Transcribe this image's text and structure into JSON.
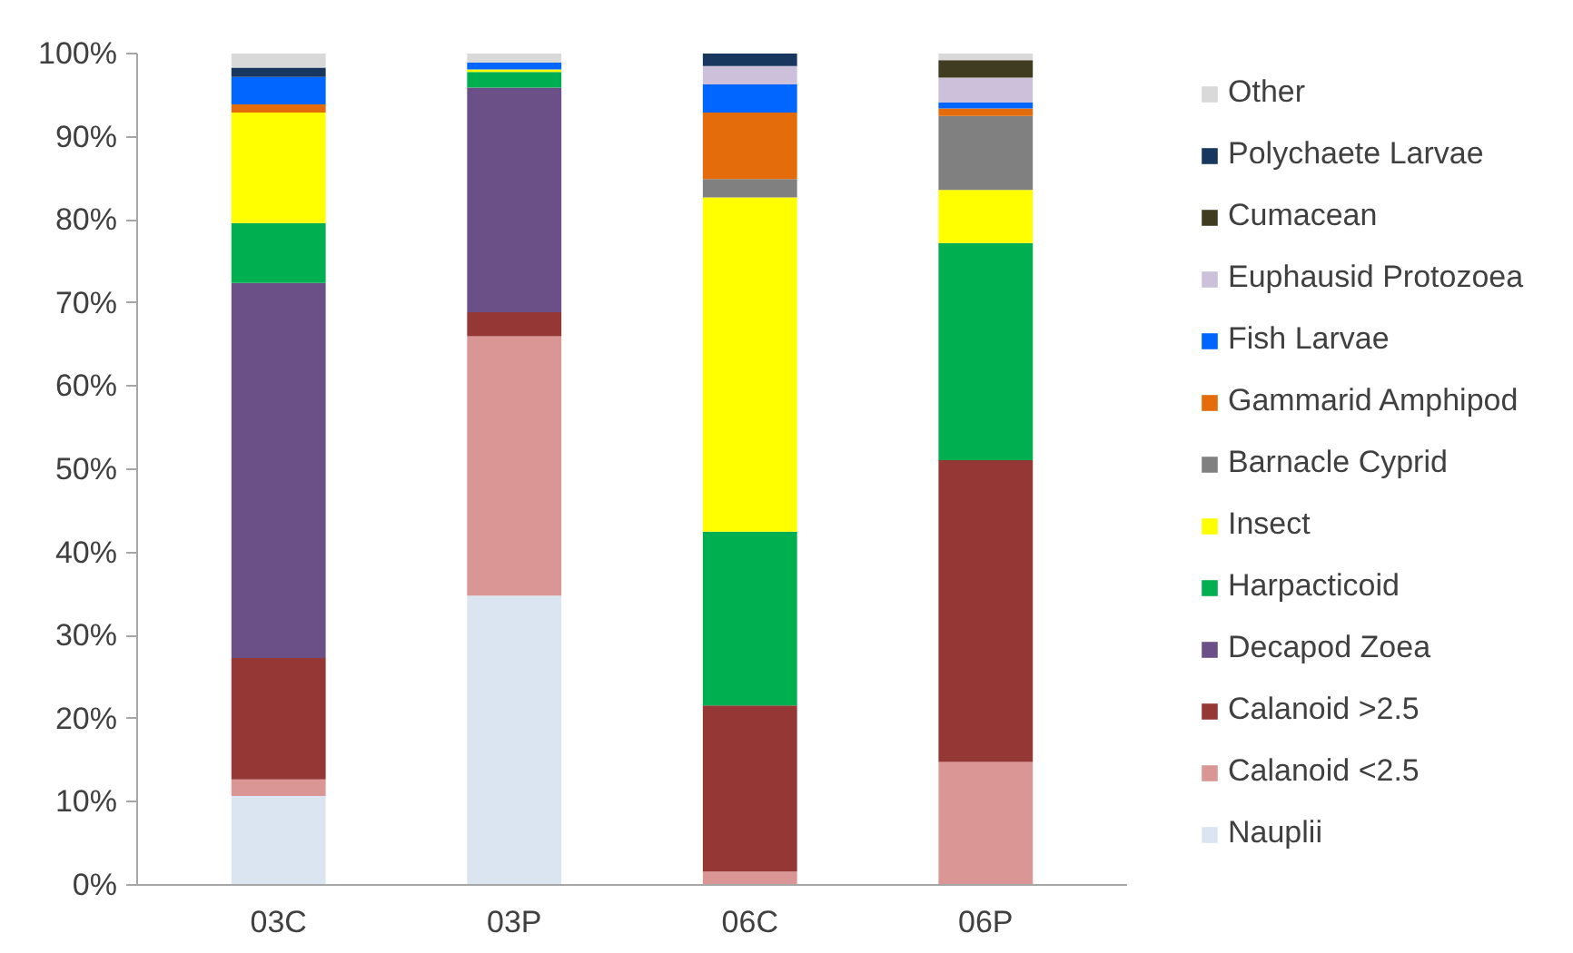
{
  "chart_data": {
    "type": "bar",
    "stacked": true,
    "categories": [
      "03C",
      "03P",
      "06C",
      "06P"
    ],
    "series": [
      {
        "name": "Nauplii",
        "color": "#dbe5f1",
        "values": [
          10.7,
          34.8,
          0,
          0
        ]
      },
      {
        "name": "Calanoid <2.5",
        "color": "#d99694",
        "values": [
          2.0,
          31.2,
          1.6,
          14.8
        ]
      },
      {
        "name": "Calanoid >2.5",
        "color": "#953735",
        "values": [
          14.6,
          2.9,
          20.0,
          36.3
        ]
      },
      {
        "name": "Decapod Zoea",
        "color": "#6b4f87",
        "values": [
          45.1,
          27.0,
          0,
          0
        ]
      },
      {
        "name": "Harpacticoid",
        "color": "#00b050",
        "values": [
          7.2,
          1.9,
          20.9,
          26.1
        ]
      },
      {
        "name": "Insect",
        "color": "#ffff00",
        "values": [
          13.3,
          0.3,
          40.2,
          6.4
        ]
      },
      {
        "name": "Barnacle Cyprid",
        "color": "#808080",
        "values": [
          0,
          0,
          2.2,
          8.9
        ]
      },
      {
        "name": "Gammarid Amphipod",
        "color": "#e46c0a",
        "values": [
          1.0,
          0,
          8.0,
          0.9
        ]
      },
      {
        "name": "Fish Larvae",
        "color": "#0066ff",
        "values": [
          3.3,
          0.8,
          3.4,
          0.7
        ]
      },
      {
        "name": "Euphausid Protozoea",
        "color": "#ccc0da",
        "values": [
          0,
          0,
          2.2,
          3.0
        ]
      },
      {
        "name": "Cumacean",
        "color": "#403c22",
        "values": [
          0,
          0,
          0,
          2.1
        ]
      },
      {
        "name": "Polychaete Larvae",
        "color": "#17375e",
        "values": [
          1.1,
          0,
          1.5,
          0
        ]
      },
      {
        "name": "Other",
        "color": "#d9d9d9",
        "values": [
          1.7,
          1.1,
          0,
          0.8
        ]
      }
    ],
    "ylim": [
      0,
      100
    ],
    "yticks": [
      {
        "value": 0,
        "label": "0%"
      },
      {
        "value": 10,
        "label": "10%"
      },
      {
        "value": 20,
        "label": "20%"
      },
      {
        "value": 30,
        "label": "30%"
      },
      {
        "value": 40,
        "label": "40%"
      },
      {
        "value": 50,
        "label": "50%"
      },
      {
        "value": 60,
        "label": "60%"
      },
      {
        "value": 70,
        "label": "70%"
      },
      {
        "value": 80,
        "label": "80%"
      },
      {
        "value": 90,
        "label": "90%"
      },
      {
        "value": 100,
        "label": "100%"
      }
    ],
    "grid": false,
    "legend": "right"
  }
}
